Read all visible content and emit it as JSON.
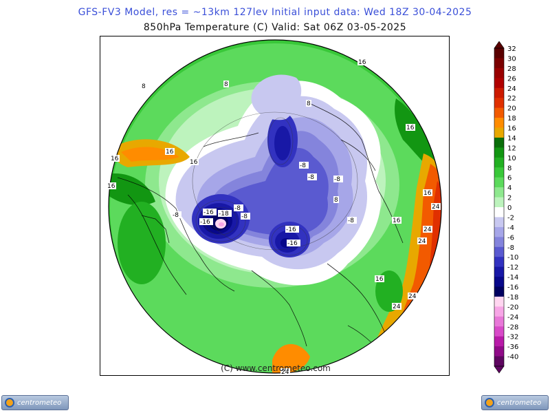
{
  "header": {
    "model_line": "GFS-FV3 Model, res = ~13km 127lev    Initial input data: Wed 18Z 30-04-2025",
    "field_line": "850hPa Temperature (C)  Valid: Sat 06Z 03-05-2025"
  },
  "map": {
    "projection": "polar stereographic",
    "credit": "(C) www.centrometeo.com",
    "contour_labels": [
      "-16",
      "-16",
      "-18",
      "-16",
      "-16",
      "-8",
      "-8",
      "-8",
      "-8",
      "-8",
      "-8",
      "-8",
      "8",
      "8",
      "8",
      "8",
      "16",
      "16",
      "16",
      "16",
      "16",
      "16",
      "16",
      "16",
      "16",
      "24",
      "24",
      "24",
      "24",
      "24",
      "24"
    ]
  },
  "colorbar": {
    "ticks": [
      "32",
      "30",
      "28",
      "26",
      "24",
      "22",
      "20",
      "18",
      "16",
      "14",
      "12",
      "10",
      "8",
      "6",
      "4",
      "2",
      "0",
      "-2",
      "-4",
      "-6",
      "-8",
      "-10",
      "-12",
      "-14",
      "-16",
      "-18",
      "-20",
      "-24",
      "-28",
      "-32",
      "-36",
      "-40"
    ],
    "colors": [
      "#5a0000",
      "#7a0000",
      "#990000",
      "#b00000",
      "#cc1a00",
      "#e03000",
      "#f25a00",
      "#ff8c00",
      "#e8a800",
      "#0a6e0a",
      "#129612",
      "#22b022",
      "#39c839",
      "#5cda5c",
      "#8ee88e",
      "#bdf3bd",
      "#ffffff",
      "#c8c8f0",
      "#a6a6e8",
      "#8484dc",
      "#5a5ad0",
      "#3232c0",
      "#1818a6",
      "#08088a",
      "#000060",
      "#ffd6f0",
      "#f7a6e6",
      "#e878d8",
      "#d84ac8",
      "#b81aa8",
      "#900a88",
      "#5e0660"
    ]
  },
  "logos": {
    "left": "centrometeo",
    "right": "centrometeo"
  }
}
